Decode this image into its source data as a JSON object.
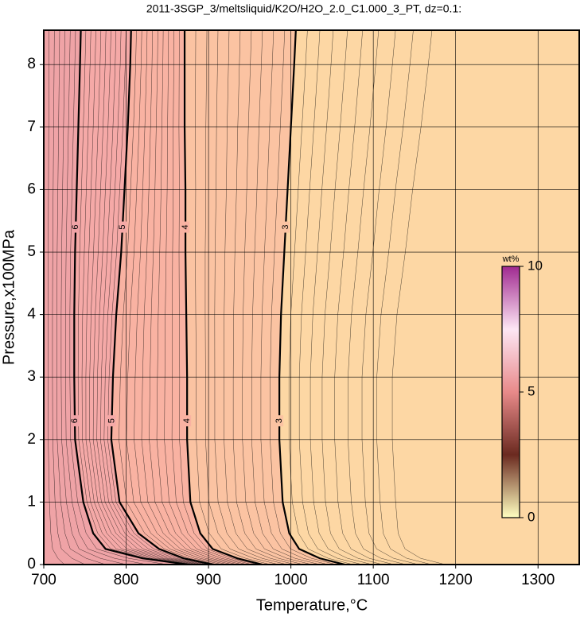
{
  "chart_data": {
    "type": "contour",
    "title": "2011-3SGP_3/meltsliquid/K2O/H2O_2.0_C1.000_3_PT, dz=0.1:",
    "xlabel": "Temperature,°C",
    "ylabel": "Pressure,x100MPa",
    "xlim": [
      700,
      1350
    ],
    "ylim": [
      0,
      8.55
    ],
    "xticks": [
      700,
      800,
      900,
      1000,
      1100,
      1200,
      1300
    ],
    "yticks": [
      0,
      1,
      2,
      3,
      4,
      5,
      6,
      7,
      8
    ],
    "grid": true,
    "background": "#fdd7a4",
    "contours": [
      {
        "level": 6,
        "fill": "#efa3a6",
        "x": [
          875,
          820,
          775,
          760,
          748,
          738,
          737,
          737,
          738,
          740,
          742,
          744,
          745
        ],
        "y": [
          0,
          0.1,
          0.25,
          0.5,
          1,
          2,
          3,
          4,
          5,
          6,
          7,
          8,
          8.55
        ]
      },
      {
        "level": 5,
        "fill": "#f5a9a7",
        "x": [
          905,
          870,
          840,
          815,
          792,
          782,
          784,
          788,
          794,
          798,
          802,
          805,
          806
        ],
        "y": [
          0,
          0.1,
          0.25,
          0.5,
          1,
          2,
          3,
          4,
          5,
          6,
          7,
          8,
          8.55
        ]
      },
      {
        "level": 4,
        "fill": "#f9b2a2",
        "x": [
          965,
          935,
          905,
          890,
          878,
          874,
          874,
          873,
          872,
          872,
          871,
          871,
          871
        ],
        "y": [
          0,
          0.1,
          0.25,
          0.5,
          1,
          2,
          3,
          4,
          5,
          6,
          7,
          8,
          8.55
        ]
      },
      {
        "level": 3,
        "fill": "#fbc3a2",
        "x": [
          1065,
          1035,
          1010,
          998,
          990,
          986,
          986,
          988,
          992,
          996,
          1000,
          1004,
          1006
        ],
        "y": [
          0,
          0.1,
          0.25,
          0.5,
          1,
          2,
          3,
          4,
          5,
          6,
          7,
          8,
          8.55
        ]
      }
    ],
    "colorbar": {
      "label": "wt%",
      "lim": [
        0,
        10
      ],
      "ticks": [
        0,
        5,
        10
      ],
      "colors": [
        "#ffffc0",
        "#6b2a20",
        "#e88a8a",
        "#fde6f4",
        "#a02a90"
      ]
    }
  }
}
